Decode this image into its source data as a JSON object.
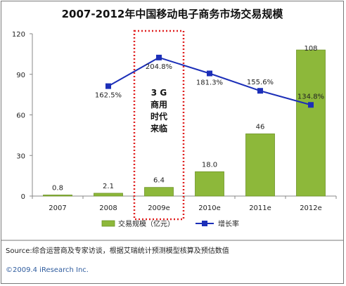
{
  "chart_data": {
    "type": "bar",
    "title": "2007-2012年中国移动电子商务市场交易规模",
    "categories": [
      "2007",
      "2008",
      "2009e",
      "2010e",
      "2011e",
      "2012e"
    ],
    "series": [
      {
        "name": "交易规模（亿元）",
        "type": "bar",
        "values": [
          0.8,
          2.1,
          6.4,
          18.0,
          46,
          108
        ],
        "labels": [
          "0.8",
          "2.1",
          "6.4",
          "18.0",
          "46",
          "108"
        ],
        "color": "#8db83a"
      },
      {
        "name": "增长率",
        "type": "line",
        "values": [
          null,
          162.5,
          204.8,
          181.3,
          155.6,
          134.8
        ],
        "labels": [
          "",
          "162.5%",
          "204.8%",
          "181.3%",
          "155.6%",
          "134.8%"
        ],
        "color": "#1c2fb8"
      }
    ],
    "yticks": [
      "0",
      "30",
      "60",
      "90",
      "120"
    ],
    "ylim": [
      0,
      120
    ],
    "y2lim": [
      0,
      240
    ],
    "xlabel": "",
    "ylabel": "",
    "grid": false,
    "legend_position": "bottom",
    "annotation": {
      "lines": [
        "3 G",
        "商用",
        "时代",
        "来临"
      ],
      "target_category": "2009e",
      "color": "#e02020"
    }
  },
  "source": "Source:综合运营商及专家访谈，根据艾瑞统计预测模型核算及预估数值",
  "copyright": "©2009.4 iResearch Inc."
}
